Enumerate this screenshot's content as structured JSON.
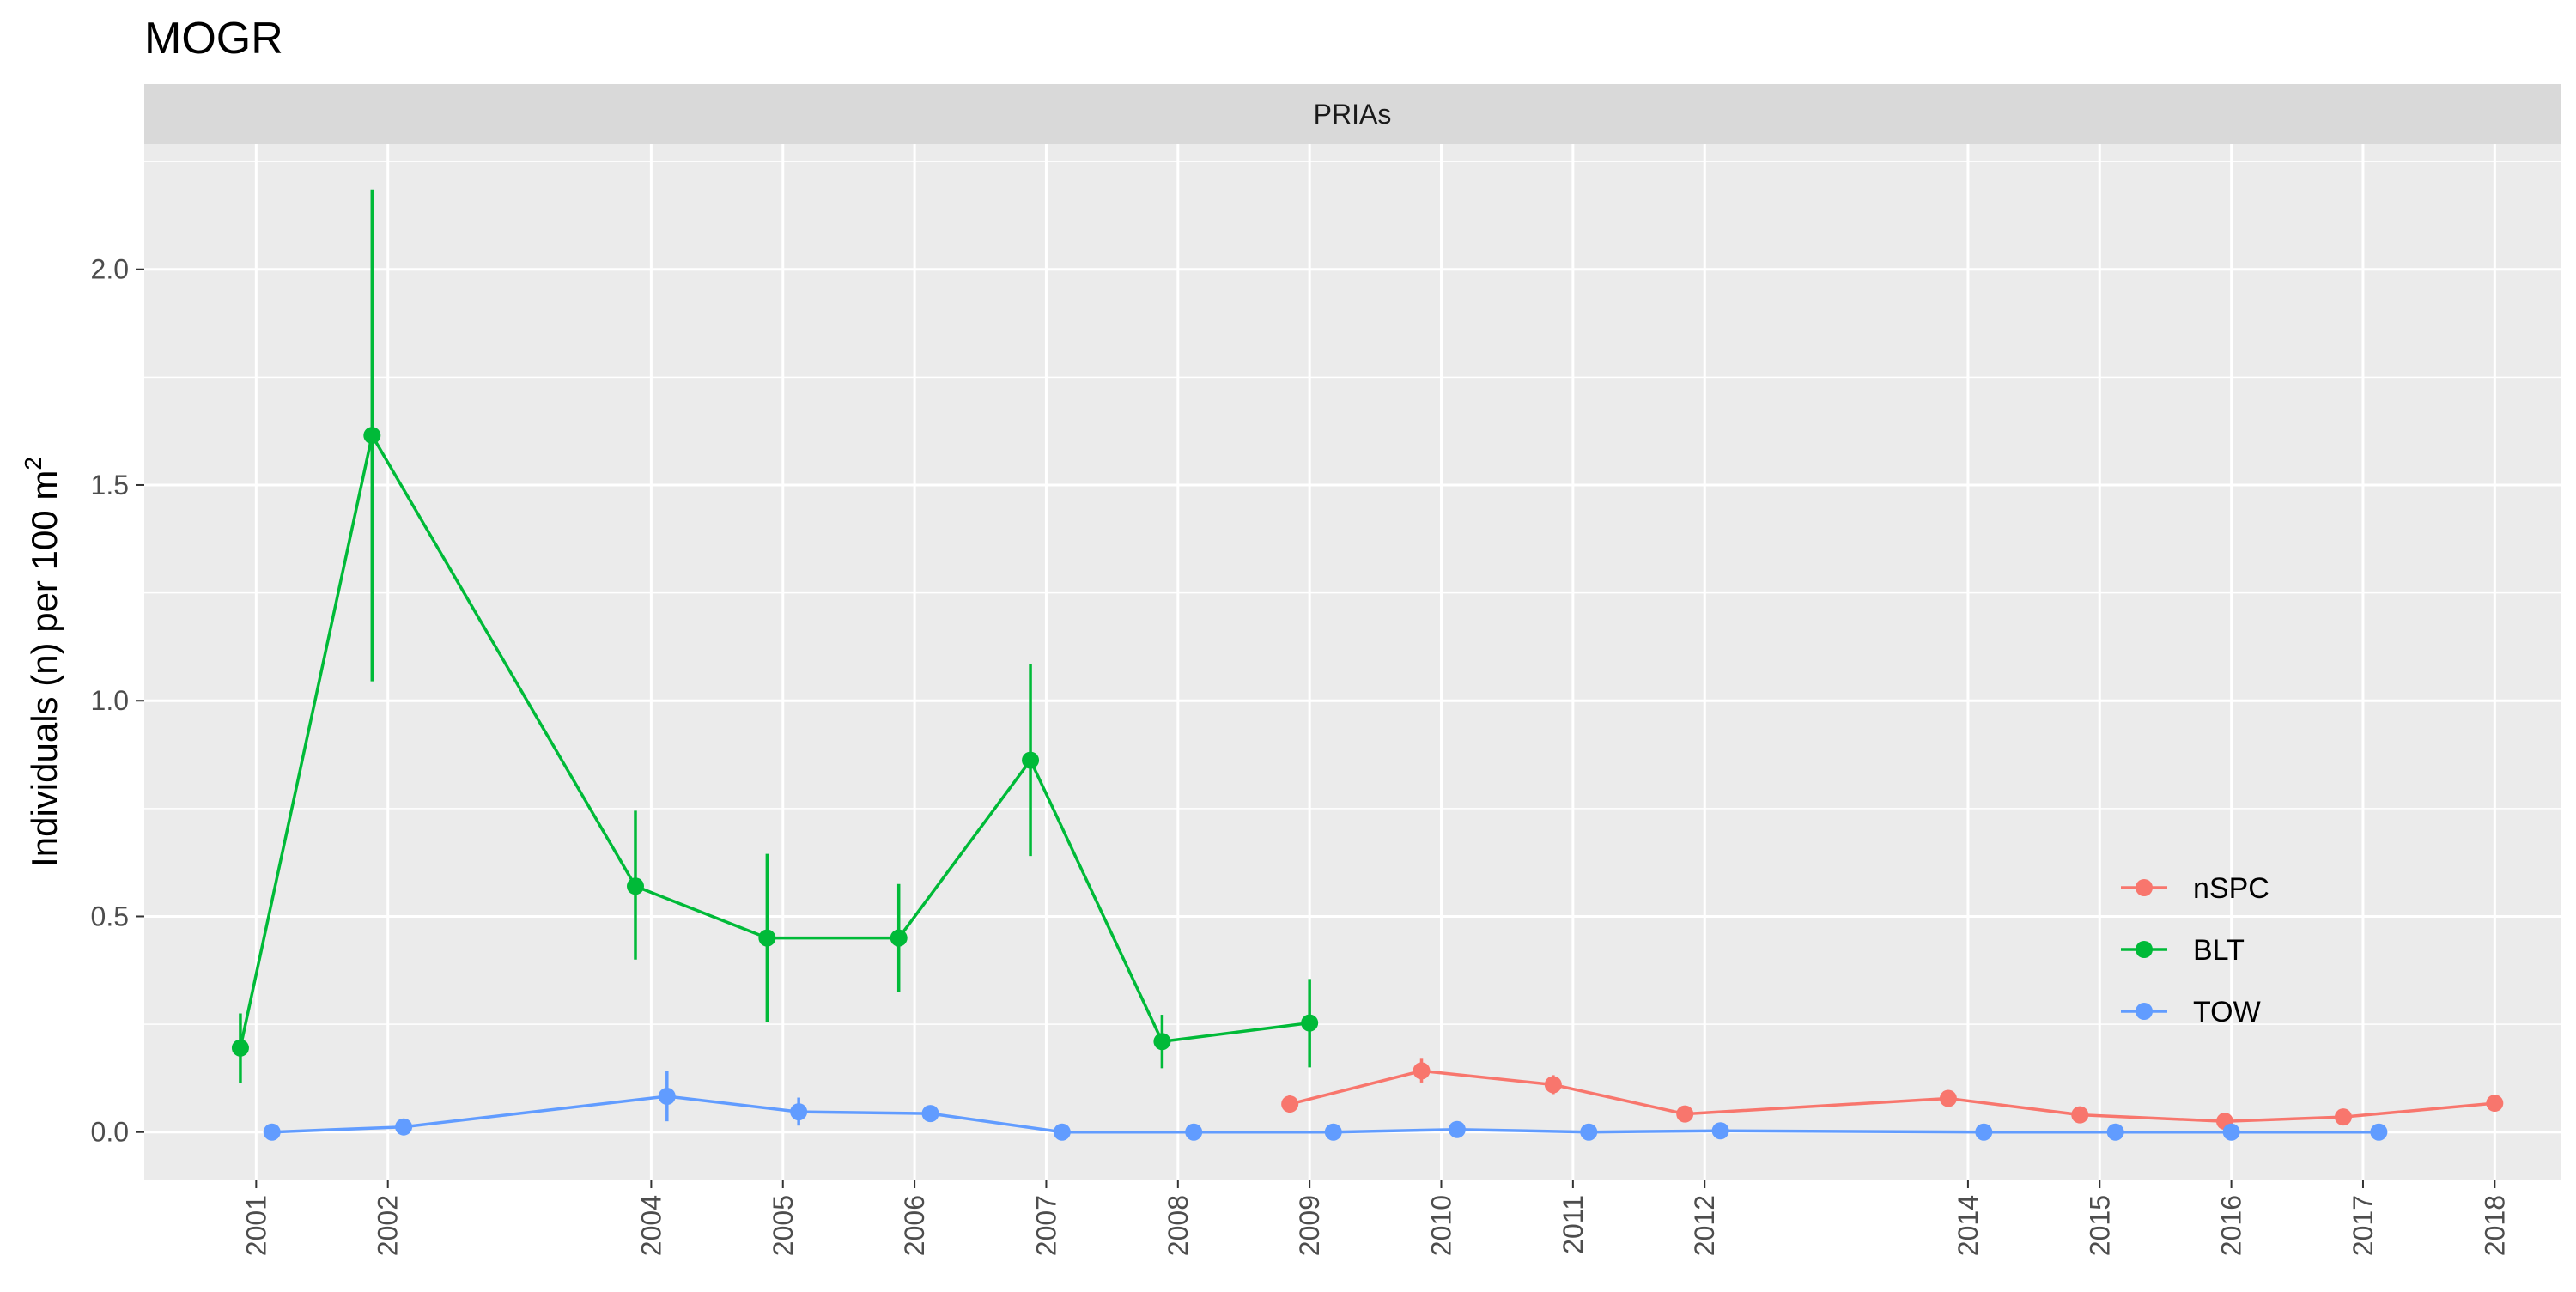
{
  "chart_data": {
    "type": "line",
    "title": "MOGR",
    "facet": "PRIAs",
    "ylabel": "Individuals (n) per 100 m",
    "ylabel_superscript": "2",
    "xlabel": "",
    "x_ticks": [
      2001,
      2002,
      2004,
      2005,
      2006,
      2007,
      2008,
      2009,
      2010,
      2011,
      2012,
      2014,
      2015,
      2016,
      2017,
      2018
    ],
    "y_ticks": [
      0.0,
      0.5,
      1.0,
      1.5,
      2.0
    ],
    "y_tick_labels": [
      "0.0",
      "0.5",
      "1.0",
      "1.5",
      "2.0"
    ],
    "xlim": [
      2000.15,
      2018.5
    ],
    "ylim": [
      -0.11,
      2.29
    ],
    "grid": true,
    "legend_position": "right",
    "series": [
      {
        "name": "nSPC",
        "color": "#F8766D",
        "points": [
          {
            "x": 2008.85,
            "y": 0.065,
            "lo": 0.045,
            "hi": 0.085
          },
          {
            "x": 2009.85,
            "y": 0.142,
            "lo": 0.115,
            "hi": 0.17
          },
          {
            "x": 2010.85,
            "y": 0.11,
            "lo": 0.088,
            "hi": 0.132
          },
          {
            "x": 2011.85,
            "y": 0.042,
            "lo": 0.034,
            "hi": 0.05
          },
          {
            "x": 2013.85,
            "y": 0.078,
            "lo": 0.066,
            "hi": 0.09
          },
          {
            "x": 2014.85,
            "y": 0.04,
            "lo": 0.033,
            "hi": 0.047
          },
          {
            "x": 2015.95,
            "y": 0.025,
            "lo": 0.019,
            "hi": 0.031
          },
          {
            "x": 2016.85,
            "y": 0.035,
            "lo": 0.028,
            "hi": 0.042
          },
          {
            "x": 2018.0,
            "y": 0.067,
            "lo": 0.057,
            "hi": 0.077
          }
        ]
      },
      {
        "name": "BLT",
        "color": "#00BA38",
        "points": [
          {
            "x": 2000.88,
            "y": 0.195,
            "lo": 0.115,
            "hi": 0.275
          },
          {
            "x": 2001.88,
            "y": 1.615,
            "lo": 1.045,
            "hi": 2.185
          },
          {
            "x": 2003.88,
            "y": 0.57,
            "lo": 0.4,
            "hi": 0.745
          },
          {
            "x": 2004.88,
            "y": 0.45,
            "lo": 0.255,
            "hi": 0.645
          },
          {
            "x": 2005.88,
            "y": 0.45,
            "lo": 0.325,
            "hi": 0.575
          },
          {
            "x": 2006.88,
            "y": 0.862,
            "lo": 0.64,
            "hi": 1.085
          },
          {
            "x": 2007.88,
            "y": 0.21,
            "lo": 0.148,
            "hi": 0.272
          },
          {
            "x": 2009.0,
            "y": 0.253,
            "lo": 0.15,
            "hi": 0.355
          }
        ]
      },
      {
        "name": "TOW",
        "color": "#619CFF",
        "points": [
          {
            "x": 2001.12,
            "y": 0.0,
            "lo": 0.0,
            "hi": 0.0
          },
          {
            "x": 2002.12,
            "y": 0.012,
            "lo": 0.005,
            "hi": 0.019
          },
          {
            "x": 2004.12,
            "y": 0.083,
            "lo": 0.025,
            "hi": 0.142
          },
          {
            "x": 2005.12,
            "y": 0.047,
            "lo": 0.015,
            "hi": 0.08
          },
          {
            "x": 2006.12,
            "y": 0.043,
            "lo": 0.035,
            "hi": 0.051
          },
          {
            "x": 2007.12,
            "y": 0.0,
            "lo": 0.0,
            "hi": 0.0
          },
          {
            "x": 2008.12,
            "y": 0.0,
            "lo": 0.0,
            "hi": 0.0
          },
          {
            "x": 2009.18,
            "y": 0.0,
            "lo": 0.0,
            "hi": 0.0
          },
          {
            "x": 2010.12,
            "y": 0.006,
            "lo": 0.002,
            "hi": 0.01
          },
          {
            "x": 2011.12,
            "y": 0.0,
            "lo": 0.0,
            "hi": 0.0
          },
          {
            "x": 2012.12,
            "y": 0.003,
            "lo": 0.001,
            "hi": 0.005
          },
          {
            "x": 2014.12,
            "y": 0.0,
            "lo": 0.0,
            "hi": 0.0
          },
          {
            "x": 2015.12,
            "y": 0.0,
            "lo": 0.0,
            "hi": 0.0
          },
          {
            "x": 2016.0,
            "y": 0.0,
            "lo": 0.0,
            "hi": 0.0
          },
          {
            "x": 2017.12,
            "y": 0.0,
            "lo": 0.0,
            "hi": 0.0
          }
        ]
      }
    ]
  }
}
